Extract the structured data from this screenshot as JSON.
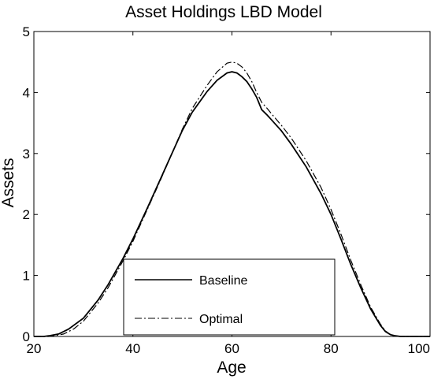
{
  "chart_data": {
    "type": "line",
    "title": "Asset Holdings LBD Model",
    "xlabel": "Age",
    "ylabel": "Assets",
    "xlim": [
      20,
      100
    ],
    "ylim": [
      0,
      5
    ],
    "xticks": [
      20,
      40,
      60,
      80,
      100
    ],
    "yticks": [
      0,
      1,
      2,
      3,
      4,
      5
    ],
    "grid": false,
    "legend_position": "bottom-center",
    "series": [
      {
        "name": "Baseline",
        "color": "#000000",
        "line_style": "solid",
        "points": [
          [
            20,
            0
          ],
          [
            22,
            0
          ],
          [
            23,
            0.01
          ],
          [
            25,
            0.04
          ],
          [
            27,
            0.12
          ],
          [
            30,
            0.3
          ],
          [
            33,
            0.6
          ],
          [
            35,
            0.85
          ],
          [
            38,
            1.28
          ],
          [
            40,
            1.6
          ],
          [
            43,
            2.12
          ],
          [
            45,
            2.48
          ],
          [
            48,
            3.02
          ],
          [
            50,
            3.38
          ],
          [
            52,
            3.68
          ],
          [
            55,
            4.02
          ],
          [
            57,
            4.2
          ],
          [
            59,
            4.32
          ],
          [
            60,
            4.34
          ],
          [
            61,
            4.32
          ],
          [
            62,
            4.26
          ],
          [
            63,
            4.18
          ],
          [
            64,
            4.06
          ],
          [
            65,
            3.92
          ],
          [
            66,
            3.72
          ],
          [
            67,
            3.64
          ],
          [
            68,
            3.55
          ],
          [
            70,
            3.37
          ],
          [
            72,
            3.15
          ],
          [
            75,
            2.78
          ],
          [
            78,
            2.34
          ],
          [
            80,
            2.0
          ],
          [
            82,
            1.6
          ],
          [
            84,
            1.18
          ],
          [
            86,
            0.8
          ],
          [
            88,
            0.45
          ],
          [
            90,
            0.18
          ],
          [
            91,
            0.08
          ],
          [
            92,
            0.03
          ],
          [
            93,
            0.01
          ],
          [
            94,
            0
          ],
          [
            100,
            0
          ]
        ]
      },
      {
        "name": "Optimal",
        "color": "#000000",
        "line_style": "dash-dot",
        "points": [
          [
            20,
            0
          ],
          [
            23,
            0
          ],
          [
            24,
            0.01
          ],
          [
            26,
            0.04
          ],
          [
            28,
            0.12
          ],
          [
            30,
            0.25
          ],
          [
            33,
            0.55
          ],
          [
            35,
            0.8
          ],
          [
            38,
            1.24
          ],
          [
            40,
            1.56
          ],
          [
            43,
            2.1
          ],
          [
            45,
            2.46
          ],
          [
            48,
            3.02
          ],
          [
            50,
            3.4
          ],
          [
            52,
            3.74
          ],
          [
            55,
            4.12
          ],
          [
            57,
            4.34
          ],
          [
            59,
            4.48
          ],
          [
            60,
            4.5
          ],
          [
            61,
            4.48
          ],
          [
            62,
            4.42
          ],
          [
            63,
            4.32
          ],
          [
            64,
            4.18
          ],
          [
            65,
            4.0
          ],
          [
            66,
            3.84
          ],
          [
            67,
            3.75
          ],
          [
            68,
            3.65
          ],
          [
            70,
            3.46
          ],
          [
            72,
            3.25
          ],
          [
            75,
            2.88
          ],
          [
            78,
            2.44
          ],
          [
            80,
            2.08
          ],
          [
            82,
            1.68
          ],
          [
            84,
            1.25
          ],
          [
            86,
            0.85
          ],
          [
            88,
            0.48
          ],
          [
            90,
            0.2
          ],
          [
            91,
            0.09
          ],
          [
            92,
            0.03
          ],
          [
            93,
            0.01
          ],
          [
            94,
            0
          ],
          [
            100,
            0
          ]
        ]
      }
    ]
  }
}
